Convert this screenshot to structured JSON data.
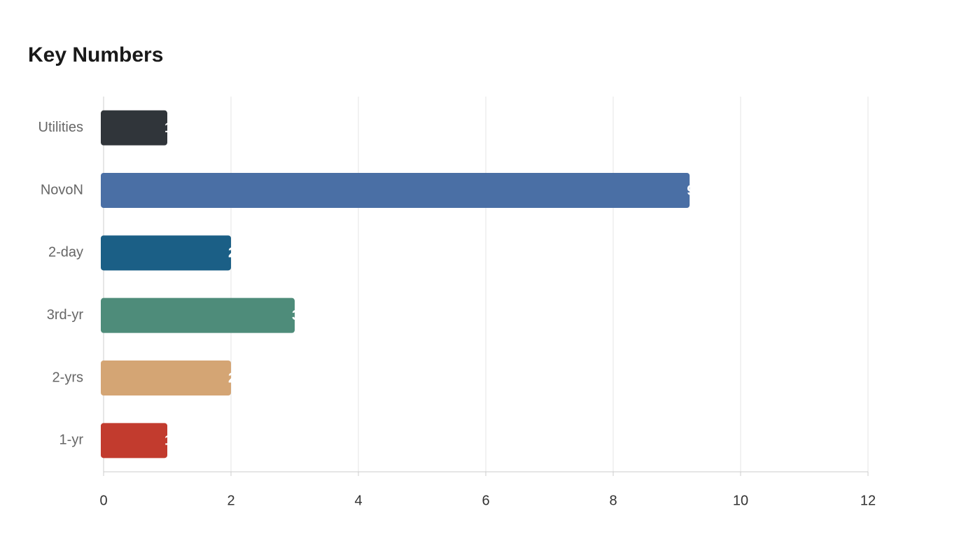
{
  "chart_data": {
    "type": "hbar",
    "title": "Key Numbers",
    "categories": [
      "Utilities",
      "NovoN",
      "2-day",
      "3rd-yr",
      "2-yrs",
      "1-yr"
    ],
    "values": [
      1,
      9.2,
      2,
      3,
      2,
      1
    ],
    "colors": [
      "#30353a",
      "#4a6fa5",
      "#1b5f86",
      "#4e8c7a",
      "#d4a574",
      "#c23b2e"
    ],
    "xlim": [
      0,
      12
    ],
    "xticks": [
      0,
      2,
      4,
      6,
      8,
      10,
      12
    ],
    "grid": true
  }
}
